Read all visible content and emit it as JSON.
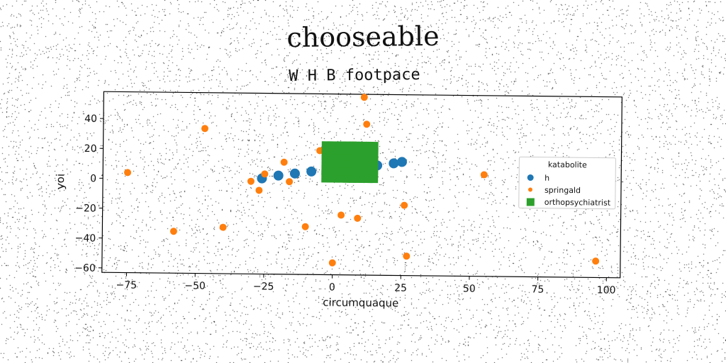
{
  "title": "chooseable",
  "subtitle": "W H B footpace",
  "chart_data": {
    "type": "scatter",
    "xlabel": "circumquaque",
    "ylabel": "yoi",
    "xlim": [
      -84,
      105
    ],
    "ylim": [
      -63,
      58
    ],
    "xticks": [
      -75,
      -50,
      -25,
      0,
      25,
      50,
      75,
      100
    ],
    "yticks": [
      -60,
      -40,
      -20,
      0,
      20,
      40
    ],
    "grid": false,
    "legend": {
      "title": "katabolite",
      "placement": "right"
    },
    "series": [
      {
        "name": "h",
        "marker": "circle",
        "color": "#1f77b4",
        "x": [
          -26,
          -20,
          -14,
          -8,
          -2,
          4,
          10,
          16,
          22,
          25
        ],
        "y": [
          1,
          3,
          4.5,
          6,
          7,
          8,
          9,
          10.5,
          12,
          13
        ]
      },
      {
        "name": "springald",
        "marker": "circle",
        "color": "#ff7f0e",
        "x": [
          -75,
          -58,
          -47,
          -40,
          -30,
          -27,
          -25,
          -18,
          -16,
          -10,
          -5,
          0,
          3,
          7,
          9,
          11,
          12,
          26,
          27,
          55,
          96
        ],
        "y": [
          4,
          -35,
          34,
          -32,
          -1,
          -7,
          4,
          12,
          -1,
          -31,
          20,
          -55,
          -23,
          24,
          -25,
          56,
          38,
          -16,
          -50,
          5,
          -52
        ]
      },
      {
        "name": "orthopsychiatrist",
        "marker": "square",
        "color": "#2ca02c",
        "x": [
          -2,
          0,
          2,
          4,
          6,
          8,
          10,
          12,
          14,
          -2,
          0,
          2,
          4,
          6,
          8,
          10,
          12,
          14,
          -2,
          0,
          2,
          4,
          6,
          8,
          10,
          12,
          14,
          -2,
          0,
          2,
          4,
          6,
          8,
          10,
          12,
          14,
          -2,
          0,
          2,
          4,
          6,
          8,
          10,
          12,
          14
        ],
        "y": [
          3,
          3,
          3,
          3,
          3,
          3,
          3,
          3,
          3,
          8,
          8,
          8,
          8,
          8,
          8,
          8,
          8,
          8,
          13,
          13,
          13,
          13,
          13,
          13,
          13,
          13,
          13,
          18,
          18,
          18,
          18,
          18,
          18,
          18,
          18,
          18,
          22,
          22,
          22,
          22,
          22,
          22,
          22,
          22,
          22
        ]
      }
    ]
  }
}
